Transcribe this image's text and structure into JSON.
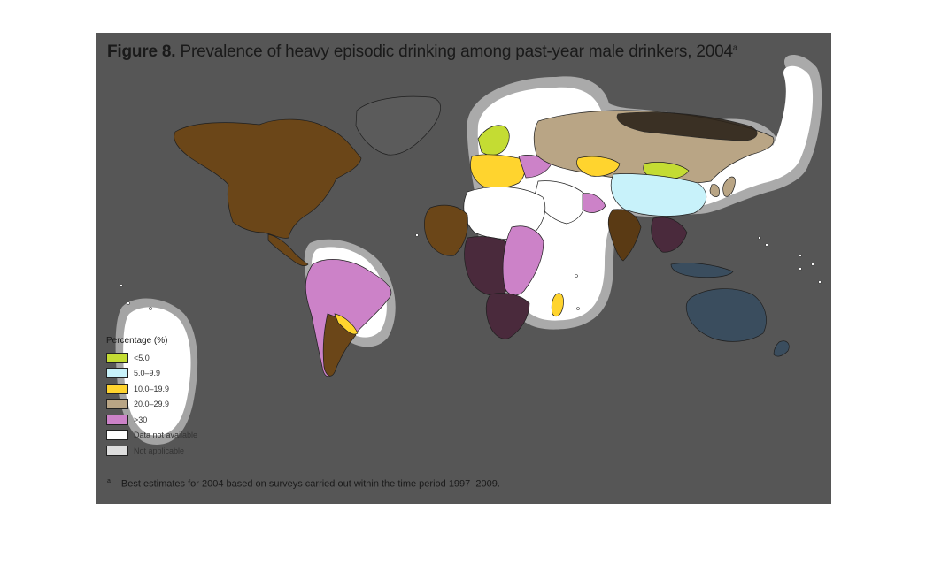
{
  "figure": {
    "title_label": "Figure 8.",
    "title_text": "Prevalence of heavy episodic drinking among past-year male drinkers, 2004",
    "title_footnote_mark": "a",
    "footnote_mark": "a",
    "footnote_text": "Best estimates for 2004 based on surveys carried out within the time period 1997–2009."
  },
  "legend": {
    "title": "Percentage (%)",
    "items": [
      {
        "label": "<5.0",
        "color": "#c4dc33"
      },
      {
        "label": "5.0–9.9",
        "color": "#c8f2fa"
      },
      {
        "label": "10.0–19.9",
        "color": "#ffd42e"
      },
      {
        "label": "20.0–29.9",
        "color": "#b9a585"
      },
      {
        "label": ">30",
        "color": "#cc82c8"
      },
      {
        "label": "Data not available",
        "color": "#ffffff"
      },
      {
        "label": "Not applicable",
        "color": "#dddddd"
      }
    ]
  },
  "colors": {
    "background": "#565656",
    "north_america": "#6b4618",
    "dark_brown": "#5a3a14",
    "purple_dark": "#4a2a3c",
    "greenland": "#555555",
    "oceania": "#3a4d5e",
    "dark_olive": "#3b3a24"
  }
}
